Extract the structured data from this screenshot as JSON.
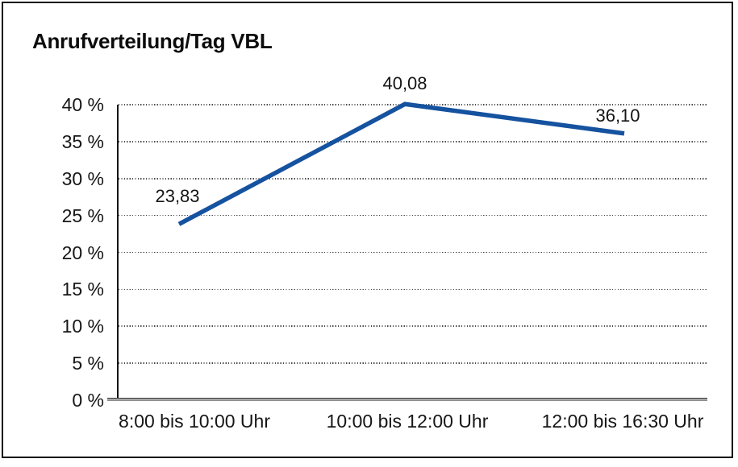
{
  "window": {
    "background": "#ffffff",
    "border_color": "#111111"
  },
  "chart_data": {
    "type": "line",
    "title": "Anrufverteilung/Tag VBL",
    "categories": [
      "8:00 bis 10:00 Uhr",
      "10:00 bis 12:00 Uhr",
      "12:00 bis 16:30 Uhr"
    ],
    "values": [
      23.83,
      40.08,
      36.1
    ],
    "point_labels": [
      "23,83",
      "40,08",
      "36,10"
    ],
    "xlabel": "",
    "ylabel": "",
    "ylim": [
      0,
      40
    ],
    "ytick_values": [
      0,
      5,
      10,
      15,
      20,
      25,
      30,
      35,
      40
    ],
    "ytick_labels": [
      "0 %",
      "5 %",
      "10 %",
      "15 %",
      "20 %",
      "25 %",
      "30 %",
      "35 %",
      "40 %"
    ],
    "grid": "horizontal dotted",
    "legend_position": "none",
    "markers": "none",
    "line_color": "#15529f",
    "line_width": 5.5,
    "axis_color": "#141414",
    "grid_color": "#4a4a4a",
    "baseline_color": "#5a5a5a",
    "label_color": "#141414"
  }
}
